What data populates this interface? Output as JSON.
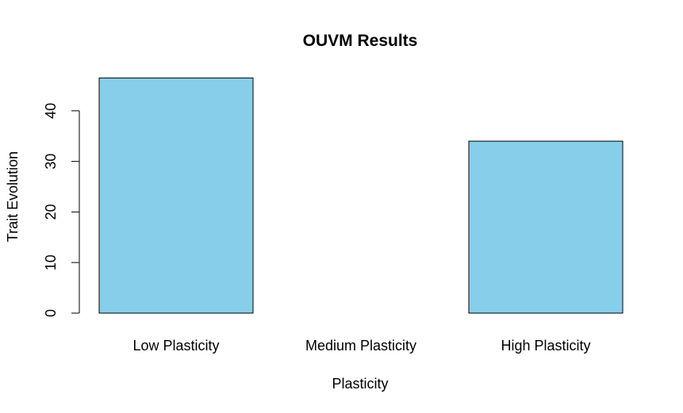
{
  "chart_data": {
    "type": "bar",
    "title": "OUVM Results",
    "xlabel": "Plasticity",
    "ylabel": "Trait Evolution",
    "categories": [
      "Low Plasticity",
      "Medium Plasticity",
      "High Plasticity"
    ],
    "values": [
      46.5,
      0,
      34
    ],
    "ylim": [
      0,
      46.5
    ],
    "yticks": [
      0,
      10,
      20,
      30,
      40
    ],
    "ytick_labels": [
      "0",
      "10",
      "20",
      "30",
      "40"
    ],
    "bar_color": "#87CEEB",
    "grid": false,
    "legend": "none"
  }
}
